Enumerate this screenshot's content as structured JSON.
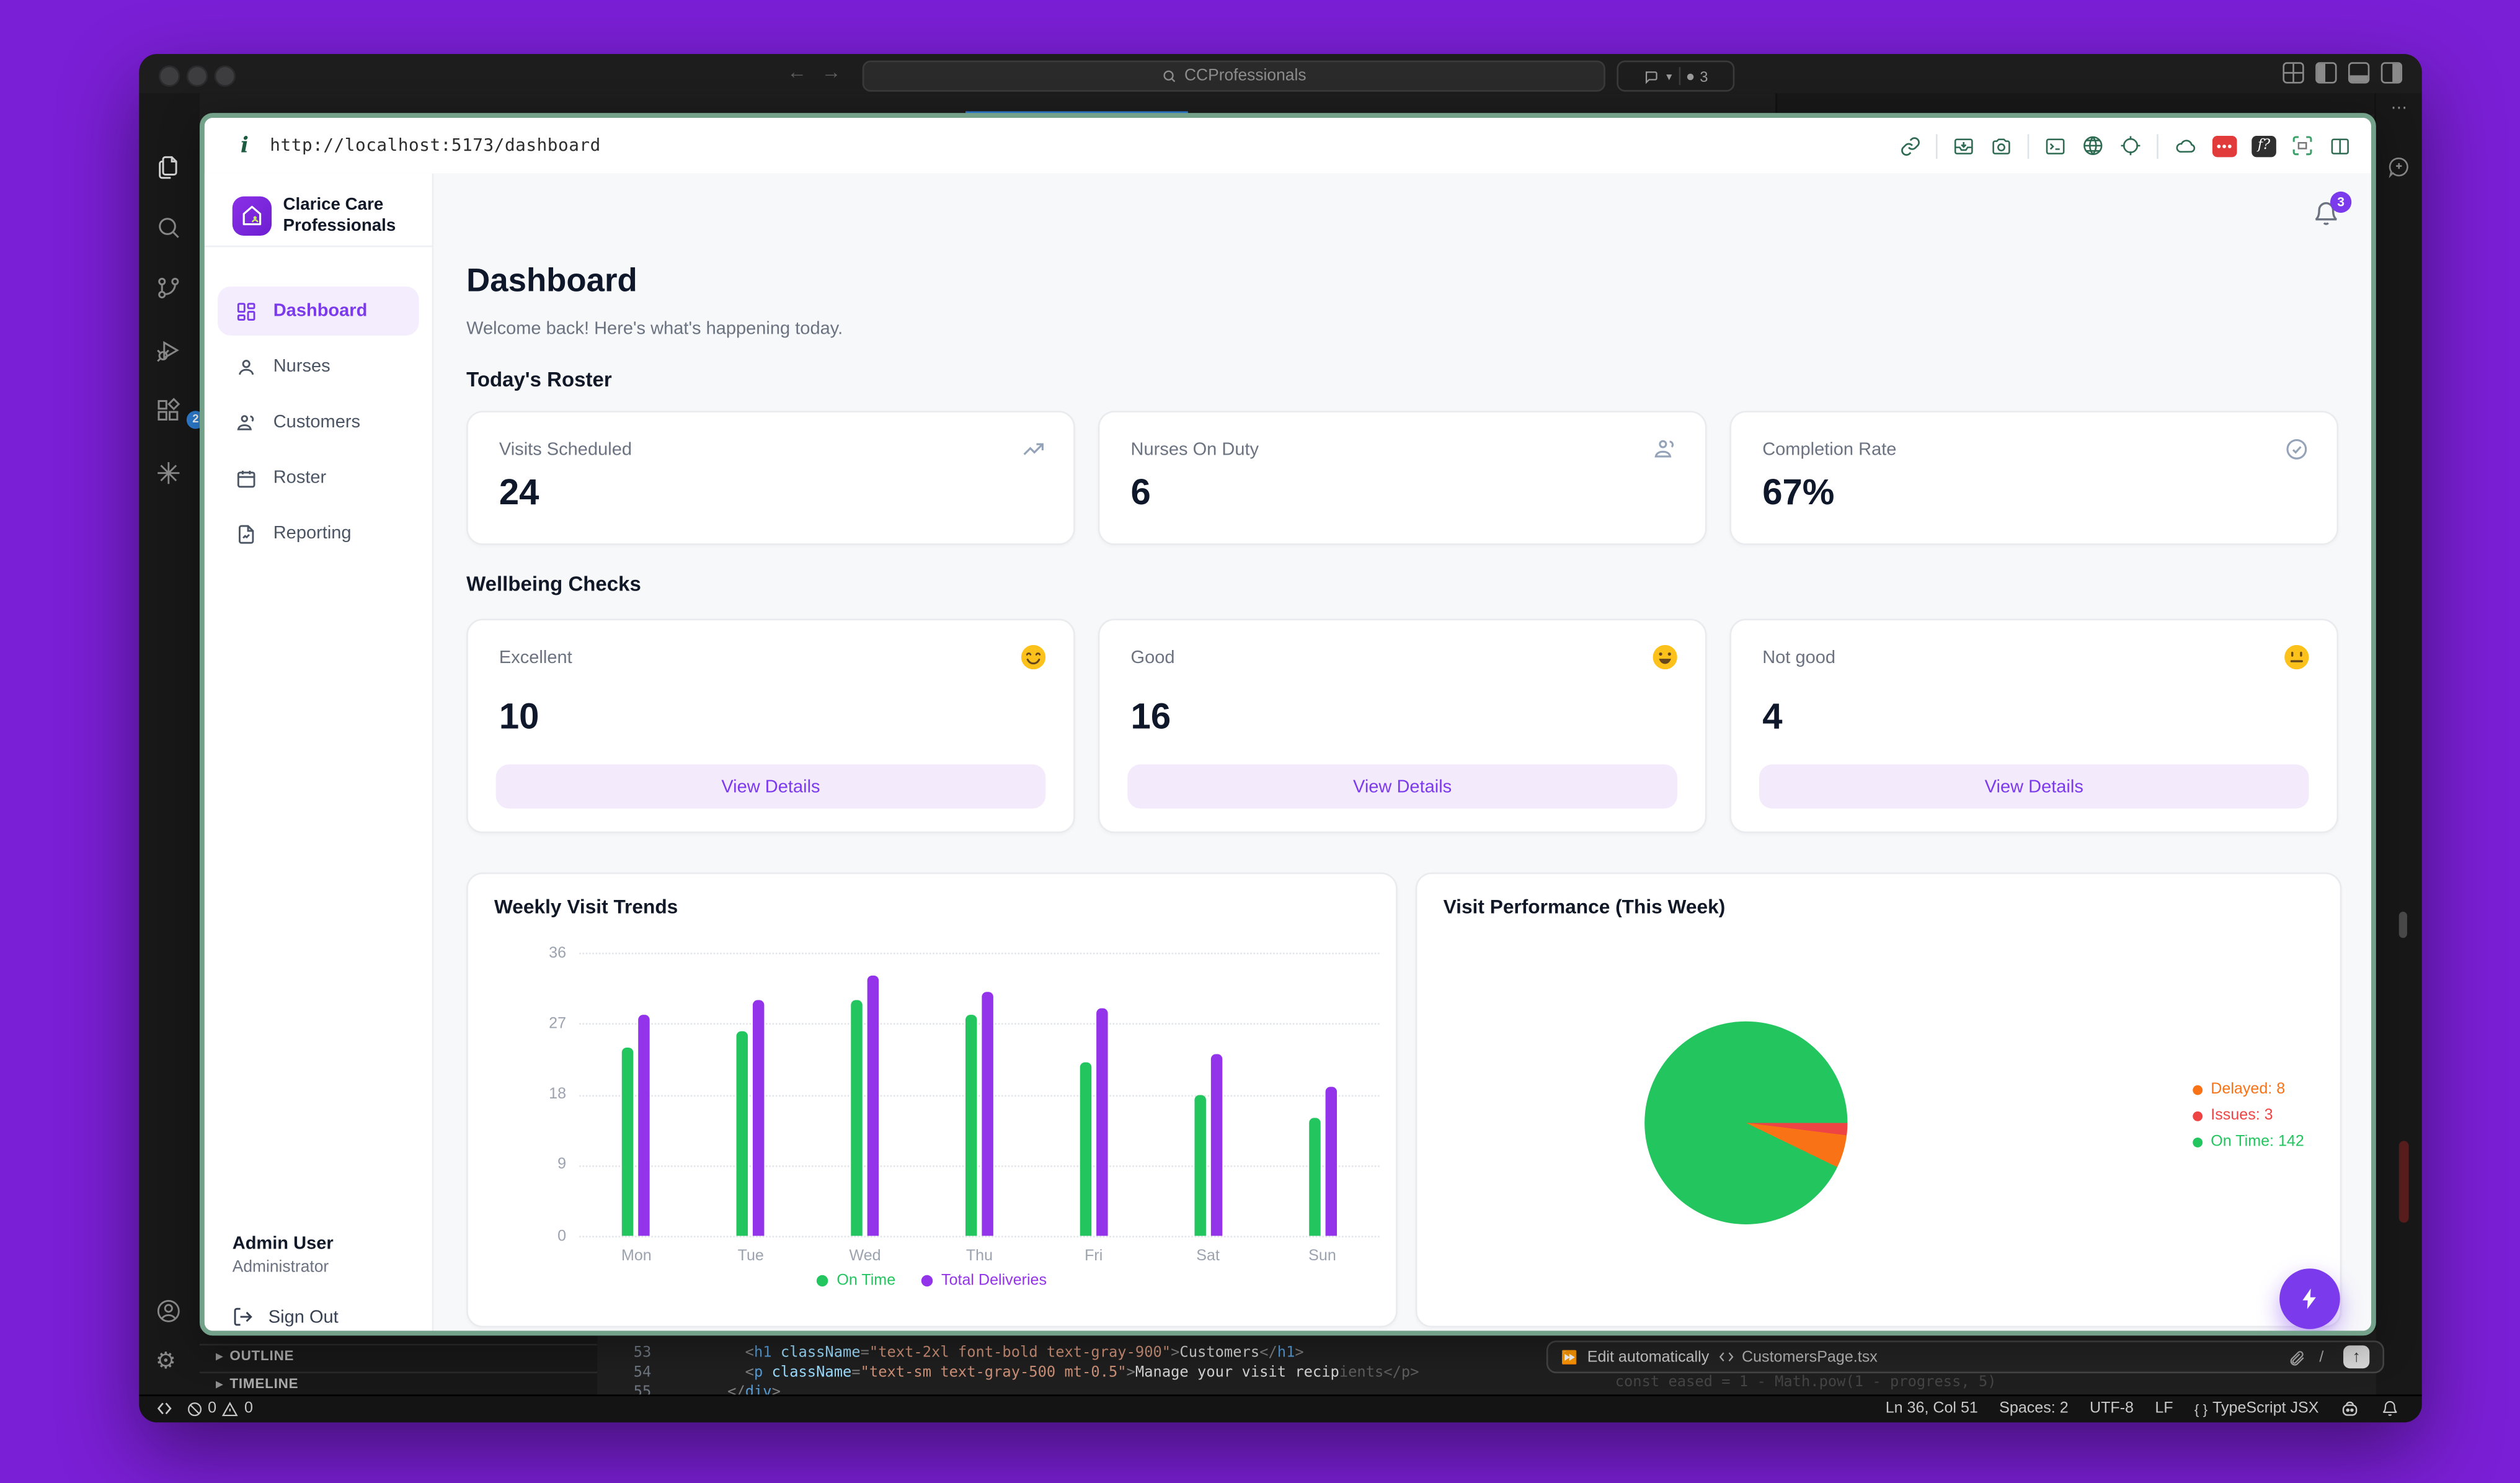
{
  "vscode": {
    "titlebar": {
      "command_center": "CCProfessionals",
      "copilot_count": "3"
    },
    "status_bar": {
      "errors": "0",
      "warnings": "0",
      "line_col": "Ln 36, Col 51",
      "spaces": "Spaces: 2",
      "encoding": "UTF-8",
      "eol": "LF",
      "language": "TypeScript JSX"
    },
    "explorer": {
      "outline": "OUTLINE",
      "timeline": "TIMELINE"
    },
    "chat_bar": {
      "mode": "Edit automatically",
      "file": "CustomersPage.tsx",
      "slash": "/"
    },
    "editor": {
      "lines": [
        {
          "num": "53",
          "tokens": [
            {
              "t": "        <",
              "c": "pun"
            },
            {
              "t": "h1",
              "c": "tag"
            },
            {
              "t": " className",
              "c": "attr"
            },
            {
              "t": "=",
              "c": "pun"
            },
            {
              "t": "\"text-2xl font-bold text-gray-900\"",
              "c": "str"
            },
            {
              "t": ">",
              "c": "pun"
            },
            {
              "t": "Customers",
              "c": "txt"
            },
            {
              "t": "</",
              "c": "pun"
            },
            {
              "t": "h1",
              "c": "tag"
            },
            {
              "t": ">",
              "c": "pun"
            }
          ]
        },
        {
          "num": "54",
          "tokens": [
            {
              "t": "        <",
              "c": "pun"
            },
            {
              "t": "p",
              "c": "tag"
            },
            {
              "t": " className",
              "c": "attr"
            },
            {
              "t": "=",
              "c": "pun"
            },
            {
              "t": "\"text-sm text-gray-500 mt-0.5\"",
              "c": "str"
            },
            {
              "t": ">",
              "c": "pun"
            },
            {
              "t": "Manage your visit recip",
              "c": "txt"
            },
            {
              "t": "ients</p>",
              "c": "ghost"
            }
          ]
        },
        {
          "num": "55",
          "tokens": [
            {
              "t": "      </",
              "c": "pun"
            },
            {
              "t": "div",
              "c": "tag"
            },
            {
              "t": ">",
              "c": "pun"
            }
          ]
        },
        {
          "num": "",
          "tokens": [
            {
              "t": "const eased = 1 - Math.pow(1 - progress, 5)",
              "c": "ghost"
            }
          ]
        }
      ]
    }
  },
  "browser": {
    "url": "http://localhost:5173/dashboard"
  },
  "app": {
    "brand": {
      "line1": "Clarice Care",
      "line2": "Professionals"
    },
    "nav": [
      {
        "label": "Dashboard",
        "active": true
      },
      {
        "label": "Nurses"
      },
      {
        "label": "Customers"
      },
      {
        "label": "Roster"
      },
      {
        "label": "Reporting"
      }
    ],
    "user": {
      "name": "Admin User",
      "role": "Administrator",
      "signout": "Sign Out"
    },
    "notifications": "3",
    "header": {
      "title": "Dashboard",
      "subtitle": "Welcome back! Here's what's happening today."
    },
    "sections": {
      "roster": "Today's Roster",
      "wellbeing": "Wellbeing Checks"
    },
    "roster_cards": [
      {
        "label": "Visits Scheduled",
        "value": "24",
        "icon": "trending-up-icon"
      },
      {
        "label": "Nurses On Duty",
        "value": "6",
        "icon": "people-icon"
      },
      {
        "label": "Completion Rate",
        "value": "67%",
        "icon": "check-circle-icon"
      }
    ],
    "wellbeing_cards": [
      {
        "label": "Excellent",
        "value": "10",
        "emoji": "smiling-face",
        "button": "View Details"
      },
      {
        "label": "Good",
        "value": "16",
        "emoji": "grinning-face",
        "button": "View Details"
      },
      {
        "label": "Not good",
        "value": "4",
        "emoji": "neutral-face",
        "button": "View Details"
      }
    ]
  },
  "chart_data": [
    {
      "type": "bar",
      "title": "Weekly Visit Trends",
      "categories": [
        "Mon",
        "Tue",
        "Wed",
        "Thu",
        "Fri",
        "Sat",
        "Sun"
      ],
      "series": [
        {
          "name": "On Time",
          "color": "#22c55e",
          "values": [
            24,
            26,
            30,
            28,
            22,
            18,
            15
          ]
        },
        {
          "name": "Total Deliveries",
          "color": "#9333ea",
          "values": [
            28,
            30,
            33,
            31,
            29,
            23,
            19
          ]
        }
      ],
      "ylim": [
        0,
        36
      ],
      "yticks": [
        0,
        9,
        18,
        27,
        36
      ],
      "grid": "dotted-horizontal",
      "legend_position": "bottom"
    },
    {
      "type": "pie",
      "title": "Visit Performance (This Week)",
      "slices": [
        {
          "label": "Delayed",
          "value": 8,
          "color": "#f97316"
        },
        {
          "label": "Issues",
          "value": 3,
          "color": "#ef4444"
        },
        {
          "label": "On Time",
          "value": 142,
          "color": "#22c55e"
        }
      ],
      "clockwise_order": [
        "Issues",
        "Delayed",
        "On Time"
      ],
      "start_angle_deg": 90,
      "legend_position": "right"
    }
  ]
}
